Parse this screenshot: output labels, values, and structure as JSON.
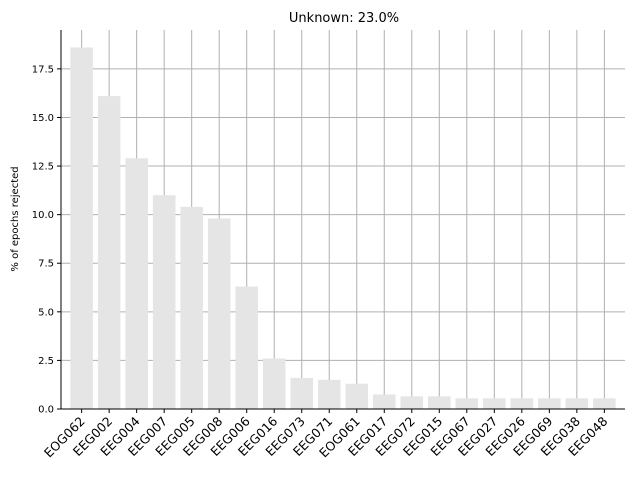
{
  "chart_data": {
    "type": "bar",
    "title": "Unknown: 23.0%",
    "xlabel": "",
    "ylabel": "% of epochs rejected",
    "ylim": [
      0,
      19.5
    ],
    "yticks": [
      "0.0",
      "2.5",
      "5.0",
      "7.5",
      "10.0",
      "12.5",
      "15.0",
      "17.5"
    ],
    "grid": true,
    "bar_color": "#e5e5e5",
    "grid_color": "#b0b0b0",
    "categories": [
      "EOG062",
      "EEG002",
      "EEG004",
      "EEG007",
      "EEG005",
      "EEG008",
      "EEG006",
      "EEG016",
      "EEG073",
      "EEG071",
      "EOG061",
      "EEG017",
      "EEG072",
      "EEG015",
      "EEG067",
      "EEG027",
      "EEG026",
      "EEG069",
      "EEG038",
      "EEG048"
    ],
    "values": [
      18.6,
      16.1,
      12.9,
      11.0,
      10.4,
      9.8,
      6.3,
      2.6,
      1.6,
      1.5,
      1.3,
      0.75,
      0.65,
      0.65,
      0.55,
      0.55,
      0.55,
      0.55,
      0.55,
      0.55
    ]
  }
}
